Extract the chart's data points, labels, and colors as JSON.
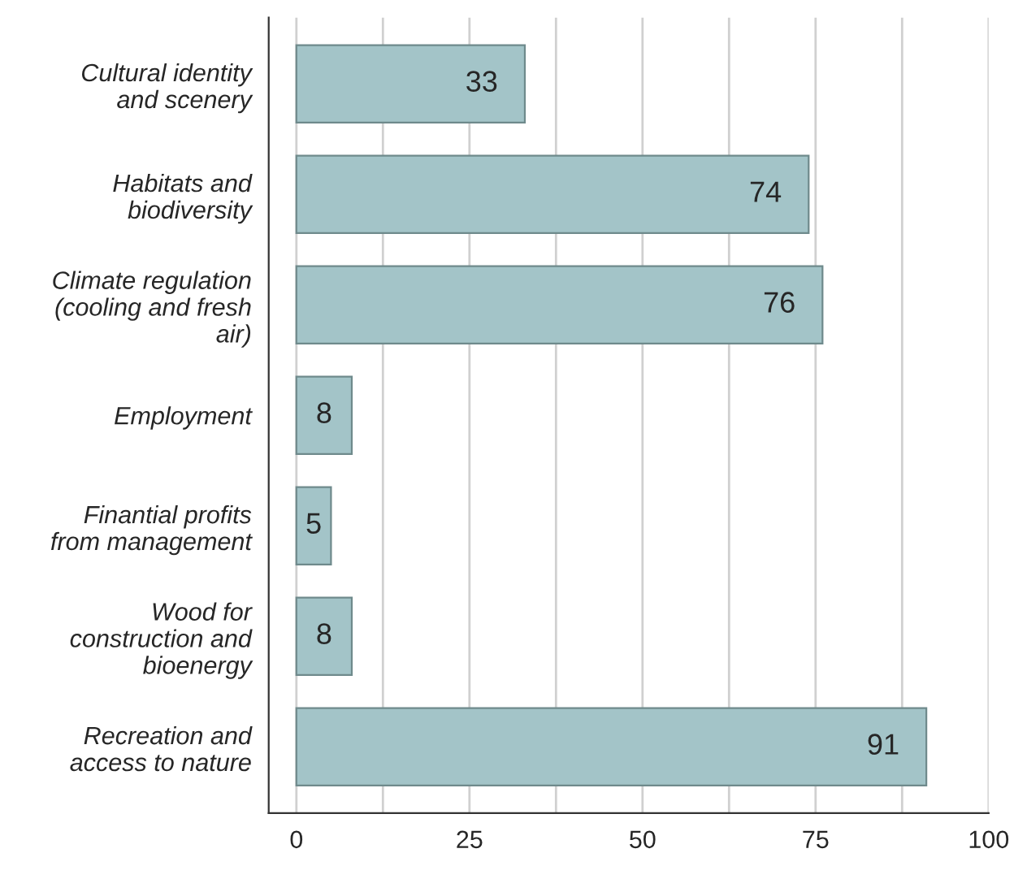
{
  "chart_data": {
    "type": "bar",
    "orientation": "horizontal",
    "categories": [
      "Cultural identity\nand scenery",
      "Habitats and\nbiodiversity",
      "Climate regulation\n(cooling and fresh\nair)",
      "Employment",
      "Finantial profits\nfrom management",
      "Wood for\nconstruction and\nbioenergy",
      "Recreation and\naccess to nature"
    ],
    "values": [
      33,
      74,
      76,
      8,
      5,
      8,
      91
    ],
    "color": "#a3c4c8",
    "data_labels": true,
    "xlim": [
      -4,
      100
    ],
    "xticks": [
      0,
      {
        "value": 12.5,
        "label": null
      },
      25,
      {
        "value": 37.5,
        "label": null
      },
      50,
      {
        "value": 62.5,
        "label": null
      },
      75,
      {
        "value": 87.5,
        "label": null
      },
      100
    ],
    "grid": "x"
  }
}
